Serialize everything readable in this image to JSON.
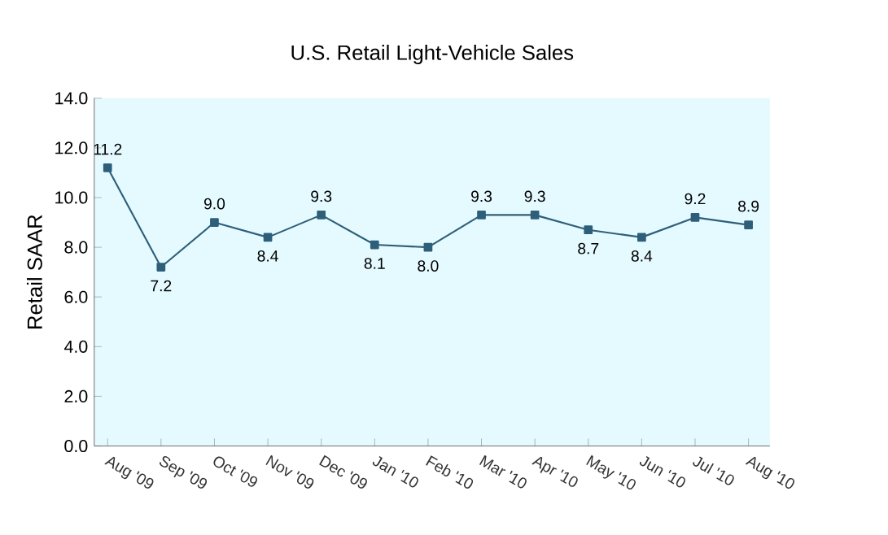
{
  "chart_data": {
    "type": "line",
    "title": "U.S. Retail Light-Vehicle Sales",
    "ylabel": "Retail SAAR",
    "categories": [
      "Aug '09",
      "Sep '09",
      "Oct '09",
      "Nov '09",
      "Dec '09",
      "Jan '10",
      "Feb '10",
      "Mar '10",
      "Apr '10",
      "May '10",
      "Jun '10",
      "Jul '10",
      "Aug '10"
    ],
    "values": [
      11.2,
      7.2,
      9.0,
      8.4,
      9.3,
      8.1,
      8.0,
      9.3,
      9.3,
      8.7,
      8.4,
      9.2,
      8.9
    ],
    "value_labels": [
      "11.2",
      "7.2",
      "9.0",
      "8.4",
      "9.3",
      "8.1",
      "8.0",
      "9.3",
      "9.3",
      "8.7",
      "8.4",
      "9.2",
      "8.9"
    ],
    "color": "#2e5f7a",
    "marker": "square",
    "line_style": "solid",
    "ylim": [
      0,
      14
    ],
    "yticks": [
      {
        "value": 0,
        "label": "0.0"
      },
      {
        "value": 2,
        "label": "2.0"
      },
      {
        "value": 4,
        "label": "4.0"
      },
      {
        "value": 6,
        "label": "6.0"
      },
      {
        "value": 8,
        "label": "8.0"
      },
      {
        "value": 10,
        "label": "10.0"
      },
      {
        "value": 12,
        "label": "12.0"
      },
      {
        "value": 14,
        "label": "14.0"
      }
    ]
  }
}
